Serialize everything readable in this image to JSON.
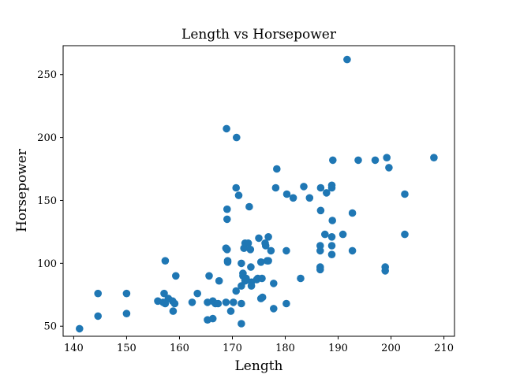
{
  "chart_data": {
    "type": "scatter",
    "title": "Length vs Horsepower",
    "xlabel": "Length",
    "ylabel": "Horsepower",
    "xlim": [
      138,
      212
    ],
    "ylim": [
      42,
      273
    ],
    "x_ticks": [
      140,
      150,
      160,
      170,
      180,
      190,
      200,
      210
    ],
    "y_ticks": [
      50,
      100,
      150,
      200,
      250
    ],
    "grid": false,
    "legend": "none",
    "colors": {
      "marker": "#1f77b4",
      "axes": "#000000",
      "background": "#ffffff"
    },
    "series": [
      {
        "points": [
          [
            141.1,
            48
          ],
          [
            144.6,
            76
          ],
          [
            144.6,
            58
          ],
          [
            150.0,
            76
          ],
          [
            150.0,
            60
          ],
          [
            155.9,
            70
          ],
          [
            156.9,
            69
          ],
          [
            157.1,
            76
          ],
          [
            157.3,
            68
          ],
          [
            157.3,
            102
          ],
          [
            157.9,
            72
          ],
          [
            158.7,
            70
          ],
          [
            158.8,
            62
          ],
          [
            159.1,
            68
          ],
          [
            159.3,
            90
          ],
          [
            162.4,
            69
          ],
          [
            163.4,
            76
          ],
          [
            165.3,
            55
          ],
          [
            165.3,
            69
          ],
          [
            165.6,
            90
          ],
          [
            166.3,
            56
          ],
          [
            166.3,
            70
          ],
          [
            166.8,
            68
          ],
          [
            167.3,
            68
          ],
          [
            167.5,
            86
          ],
          [
            168.8,
            69
          ],
          [
            168.8,
            112
          ],
          [
            168.9,
            207
          ],
          [
            169.0,
            111
          ],
          [
            169.0,
            135
          ],
          [
            169.0,
            143
          ],
          [
            169.1,
            101
          ],
          [
            169.1,
            102
          ],
          [
            169.7,
            62
          ],
          [
            170.2,
            69
          ],
          [
            170.7,
            78
          ],
          [
            170.8,
            200
          ],
          [
            170.7,
            160
          ],
          [
            171.2,
            154
          ],
          [
            171.7,
            52
          ],
          [
            171.7,
            68
          ],
          [
            171.7,
            82
          ],
          [
            171.7,
            100
          ],
          [
            172.0,
            90
          ],
          [
            172.0,
            92
          ],
          [
            172.2,
            112
          ],
          [
            172.4,
            116
          ],
          [
            172.4,
            86
          ],
          [
            172.6,
            88
          ],
          [
            173.0,
            116
          ],
          [
            173.2,
            145
          ],
          [
            173.4,
            111
          ],
          [
            173.5,
            97
          ],
          [
            173.6,
            85
          ],
          [
            173.6,
            82
          ],
          [
            174.6,
            87
          ],
          [
            174.8,
            88
          ],
          [
            175.0,
            120
          ],
          [
            175.4,
            101
          ],
          [
            175.4,
            72
          ],
          [
            175.6,
            88
          ],
          [
            175.7,
            73
          ],
          [
            176.2,
            116
          ],
          [
            176.3,
            114
          ],
          [
            176.6,
            102
          ],
          [
            176.8,
            121
          ],
          [
            176.8,
            102
          ],
          [
            177.3,
            110
          ],
          [
            177.8,
            84
          ],
          [
            177.8,
            64
          ],
          [
            178.2,
            160
          ],
          [
            178.4,
            175
          ],
          [
            180.2,
            68
          ],
          [
            180.2,
            110
          ],
          [
            180.3,
            155
          ],
          [
            181.5,
            152
          ],
          [
            182.9,
            88
          ],
          [
            183.5,
            161
          ],
          [
            184.6,
            152
          ],
          [
            186.6,
            97
          ],
          [
            186.6,
            95
          ],
          [
            186.6,
            114
          ],
          [
            186.6,
            110
          ],
          [
            186.7,
            142
          ],
          [
            186.7,
            160
          ],
          [
            187.5,
            123
          ],
          [
            187.8,
            156
          ],
          [
            188.8,
            160
          ],
          [
            188.8,
            114
          ],
          [
            188.8,
            107
          ],
          [
            188.8,
            162
          ],
          [
            188.9,
            134
          ],
          [
            188.8,
            121
          ],
          [
            189.0,
            182
          ],
          [
            190.9,
            123
          ],
          [
            192.7,
            140
          ],
          [
            192.7,
            110
          ],
          [
            191.7,
            262
          ],
          [
            193.8,
            182
          ],
          [
            197.0,
            182
          ],
          [
            198.9,
            94
          ],
          [
            198.9,
            97
          ],
          [
            199.2,
            184
          ],
          [
            199.6,
            176
          ],
          [
            202.6,
            155
          ],
          [
            202.6,
            123
          ],
          [
            208.1,
            184
          ]
        ]
      }
    ]
  }
}
